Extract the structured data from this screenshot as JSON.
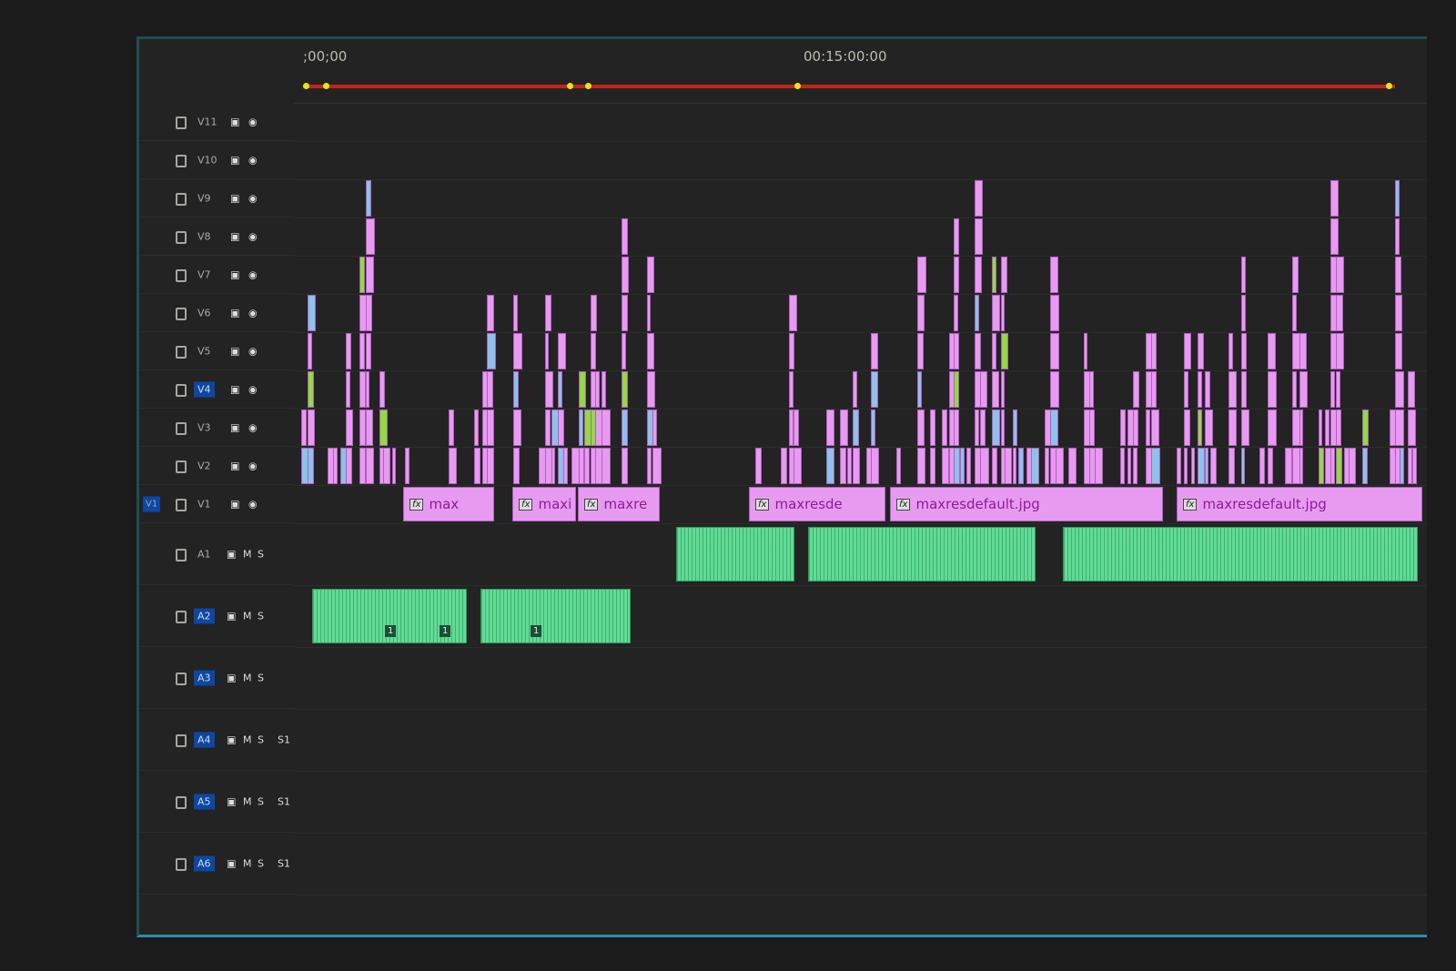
{
  "ruler": {
    "start_label": ";00;00",
    "mid_label": "00:15:00:00"
  },
  "colors": {
    "video_clip": "#e79bf0",
    "audio_clip": "#5fdc95",
    "work_area": "#c2261a",
    "track_target": "#0d47a1",
    "panel_border": "#2b8fa6"
  },
  "video_tracks": [
    "V11",
    "V10",
    "V9",
    "V8",
    "V7",
    "V6",
    "V5",
    "V4",
    "V3",
    "V2",
    "V1"
  ],
  "highlighted_video_track": "V4",
  "source_patch_video": "V1",
  "audio_tracks": [
    "A1",
    "A2",
    "A3",
    "A4",
    "A5",
    "A6"
  ],
  "audio_track_buttons": {
    "mute": "M",
    "solo": "S"
  },
  "audio_channel_label": "S1",
  "video_clip_labels": [
    "max",
    "maxi",
    "maxre",
    "maxresde",
    "maxresdefault.jpg",
    "maxresdefault.jpg"
  ],
  "audio_clip_markers": [
    "1",
    "1",
    "1"
  ]
}
